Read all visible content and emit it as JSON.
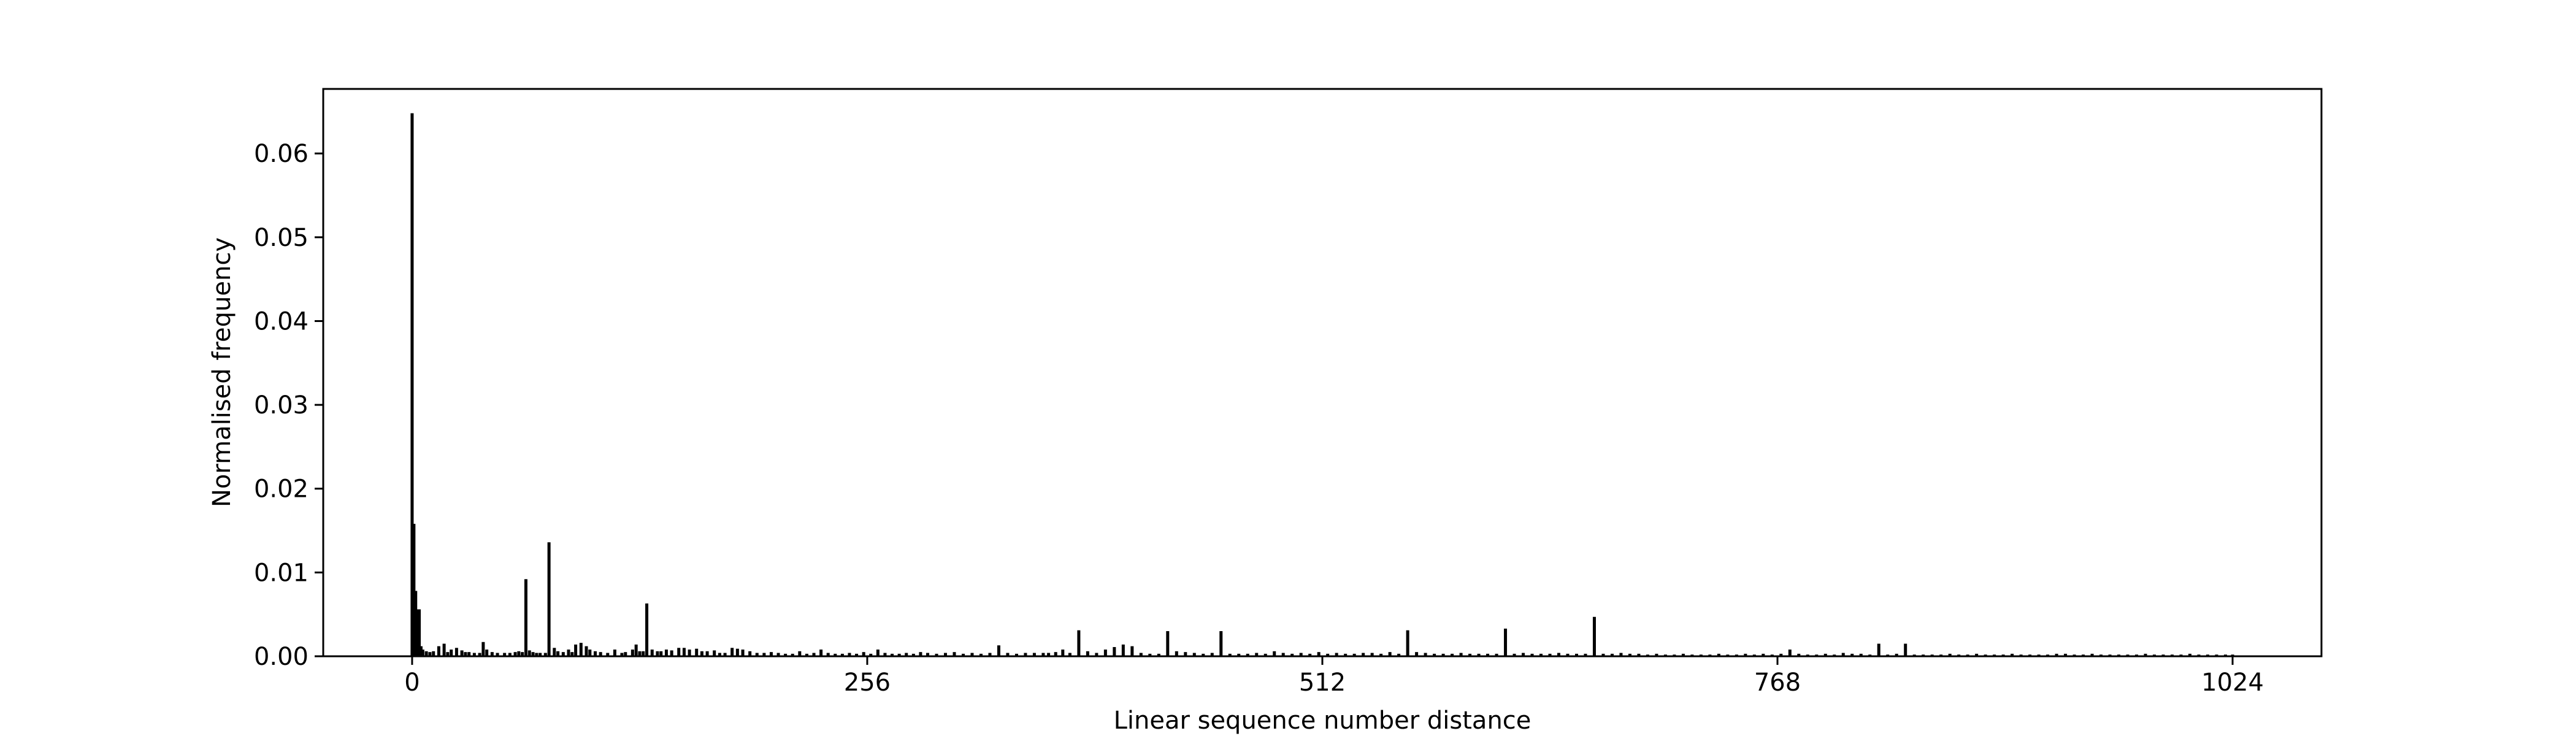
{
  "chart_data": {
    "type": "bar",
    "title": "",
    "xlabel": "Linear sequence number distance",
    "ylabel": "Normalised frequency",
    "xlim": [
      -50,
      1074
    ],
    "ylim": [
      0,
      0.0677
    ],
    "x_ticks": [
      0,
      256,
      512,
      768,
      1024
    ],
    "x_tick_labels": [
      "0",
      "256",
      "512",
      "768",
      "1024"
    ],
    "y_ticks": [
      0.0,
      0.01,
      0.02,
      0.03,
      0.04,
      0.05,
      0.06
    ],
    "y_tick_labels": [
      "0.00",
      "0.01",
      "0.02",
      "0.03",
      "0.04",
      "0.05",
      "0.06"
    ],
    "grid": false,
    "legend": "none",
    "bar_color": "#000000",
    "x": [
      0,
      1,
      2,
      3,
      4,
      5,
      6,
      8,
      10,
      12,
      15,
      18,
      20,
      22,
      25,
      28,
      30,
      32,
      35,
      38,
      40,
      42,
      45,
      48,
      52,
      55,
      58,
      60,
      62,
      64,
      66,
      68,
      70,
      72,
      75,
      77,
      80,
      82,
      85,
      88,
      90,
      92,
      95,
      98,
      100,
      103,
      106,
      110,
      114,
      118,
      120,
      124,
      126,
      128,
      130,
      132,
      135,
      138,
      140,
      143,
      146,
      150,
      153,
      156,
      160,
      163,
      166,
      170,
      173,
      176,
      180,
      183,
      186,
      190,
      194,
      198,
      202,
      206,
      210,
      214,
      218,
      222,
      226,
      230,
      234,
      238,
      242,
      246,
      250,
      254,
      258,
      262,
      266,
      270,
      274,
      278,
      282,
      286,
      290,
      295,
      300,
      305,
      310,
      315,
      320,
      325,
      330,
      335,
      340,
      345,
      350,
      355,
      358,
      362,
      366,
      370,
      375,
      380,
      385,
      390,
      395,
      400,
      405,
      410,
      415,
      420,
      425,
      430,
      435,
      440,
      445,
      450,
      455,
      460,
      465,
      470,
      475,
      480,
      485,
      490,
      495,
      500,
      505,
      510,
      515,
      520,
      525,
      530,
      535,
      540,
      545,
      550,
      555,
      560,
      565,
      570,
      575,
      580,
      585,
      590,
      595,
      600,
      605,
      610,
      615,
      620,
      625,
      630,
      635,
      640,
      645,
      650,
      655,
      660,
      665,
      670,
      675,
      680,
      685,
      690,
      695,
      700,
      705,
      710,
      715,
      720,
      725,
      730,
      735,
      740,
      745,
      750,
      755,
      760,
      765,
      770,
      775,
      780,
      785,
      790,
      795,
      800,
      805,
      810,
      815,
      820,
      825,
      830,
      835,
      840,
      845,
      850,
      855,
      860,
      865,
      870,
      875,
      880,
      885,
      890,
      895,
      900,
      905,
      910,
      915,
      920,
      925,
      930,
      935,
      940,
      945,
      950,
      955,
      960,
      965,
      970,
      975,
      980,
      985,
      990,
      995,
      1000,
      1005,
      1010,
      1015,
      1020,
      1024
    ],
    "values": [
      0.0648,
      0.0158,
      0.0078,
      0.0056,
      0.0056,
      0.0012,
      0.0008,
      0.0006,
      0.0005,
      0.0006,
      0.0012,
      0.0015,
      0.0005,
      0.0008,
      0.001,
      0.0007,
      0.0005,
      0.0005,
      0.0004,
      0.0004,
      0.0017,
      0.0008,
      0.0005,
      0.0004,
      0.0004,
      0.0004,
      0.0005,
      0.0006,
      0.0005,
      0.0092,
      0.0007,
      0.0005,
      0.0004,
      0.0004,
      0.0004,
      0.0136,
      0.001,
      0.0006,
      0.0005,
      0.0008,
      0.0005,
      0.0014,
      0.0016,
      0.0012,
      0.0008,
      0.0006,
      0.0005,
      0.0004,
      0.0008,
      0.0004,
      0.0005,
      0.0008,
      0.0014,
      0.0006,
      0.0006,
      0.0063,
      0.0008,
      0.0006,
      0.0006,
      0.0008,
      0.0007,
      0.001,
      0.001,
      0.0008,
      0.0009,
      0.0006,
      0.0006,
      0.0007,
      0.0004,
      0.0004,
      0.001,
      0.0009,
      0.0008,
      0.0006,
      0.0004,
      0.0004,
      0.0005,
      0.0004,
      0.0003,
      0.0003,
      0.0006,
      0.0003,
      0.0004,
      0.0008,
      0.0004,
      0.0003,
      0.0003,
      0.0004,
      0.0003,
      0.0005,
      0.0003,
      0.0008,
      0.0004,
      0.0003,
      0.0003,
      0.0004,
      0.0003,
      0.0005,
      0.0004,
      0.0003,
      0.0004,
      0.0005,
      0.0003,
      0.0004,
      0.0003,
      0.0004,
      0.0013,
      0.0004,
      0.0003,
      0.0004,
      0.0004,
      0.0004,
      0.0004,
      0.0005,
      0.0008,
      0.0004,
      0.0031,
      0.0006,
      0.0004,
      0.0008,
      0.0011,
      0.0014,
      0.0012,
      0.0004,
      0.0003,
      0.0003,
      0.003,
      0.0006,
      0.0005,
      0.0004,
      0.0003,
      0.0004,
      0.003,
      0.0003,
      0.0003,
      0.0003,
      0.0004,
      0.0003,
      0.0006,
      0.0004,
      0.0003,
      0.0004,
      0.0003,
      0.0005,
      0.0003,
      0.0004,
      0.0003,
      0.0003,
      0.0004,
      0.0004,
      0.0003,
      0.0005,
      0.0003,
      0.0031,
      0.0005,
      0.0004,
      0.0003,
      0.0003,
      0.0003,
      0.0004,
      0.0003,
      0.0003,
      0.0003,
      0.0003,
      0.0033,
      0.0003,
      0.0004,
      0.0003,
      0.0003,
      0.0003,
      0.0004,
      0.0003,
      0.0003,
      0.0003,
      0.0047,
      0.0003,
      0.0003,
      0.0004,
      0.0003,
      0.0003,
      0.0002,
      0.0003,
      0.0002,
      0.0002,
      0.0003,
      0.0002,
      0.0002,
      0.0002,
      0.0003,
      0.0002,
      0.0002,
      0.0003,
      0.0002,
      0.0003,
      0.0002,
      0.0003,
      0.0008,
      0.0003,
      0.0002,
      0.0002,
      0.0003,
      0.0002,
      0.0004,
      0.0003,
      0.0003,
      0.0002,
      0.0015,
      0.0002,
      0.0003,
      0.0015,
      0.0002,
      0.0002,
      0.0002,
      0.0002,
      0.0003,
      0.0002,
      0.0002,
      0.0003,
      0.0002,
      0.0002,
      0.0002,
      0.0003,
      0.0002,
      0.0002,
      0.0002,
      0.0002,
      0.0003,
      0.0003,
      0.0002,
      0.0002,
      0.0003,
      0.0002,
      0.0002,
      0.0002,
      0.0002,
      0.0002,
      0.0003,
      0.0002,
      0.0002,
      0.0002,
      0.0002,
      0.0003,
      0.0002,
      0.0002,
      0.0002,
      0.0002,
      0.0002
    ]
  }
}
